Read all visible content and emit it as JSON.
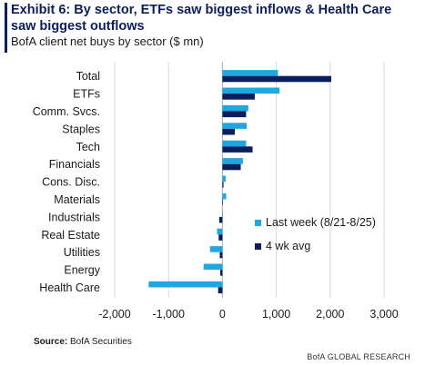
{
  "header": {
    "title": "Exhibit 6: By sector, ETFs saw biggest inflows & Health Care saw biggest outflows",
    "subtitle": "BofA client net buys by sector ($ mn)"
  },
  "chart_data": {
    "type": "bar",
    "orientation": "horizontal",
    "title": "",
    "xlabel": "",
    "ylabel": "",
    "categories": [
      "Total",
      "ETFs",
      "Comm. Svcs.",
      "Staples",
      "Tech",
      "Financials",
      "Cons. Disc.",
      "Materials",
      "Industrials",
      "Real Estate",
      "Utilities",
      "Energy",
      "Health Care"
    ],
    "series": [
      {
        "name": "Last week (8/21-8/25)",
        "color": "#1ea7e1",
        "values": [
          1030,
          1060,
          480,
          450,
          440,
          380,
          60,
          70,
          0,
          -100,
          -230,
          -350,
          -1370
        ]
      },
      {
        "name": "4 wk avg",
        "color": "#0b1f5c",
        "values": [
          2020,
          600,
          440,
          230,
          560,
          340,
          20,
          10,
          -60,
          -70,
          -50,
          -40,
          -80
        ]
      }
    ],
    "xlim": [
      -2000,
      3000
    ],
    "xticks": [
      "-2,000",
      "-1,000",
      "0",
      "1,000",
      "2,000",
      "3,000"
    ],
    "tick_values": [
      -2000,
      -1000,
      0,
      1000,
      2000,
      3000
    ],
    "grid": true,
    "legend_position": "right"
  },
  "footer": {
    "source_label": "Source:",
    "source_text": "BofA Securities",
    "brand": "BofA GLOBAL RESEARCH"
  }
}
